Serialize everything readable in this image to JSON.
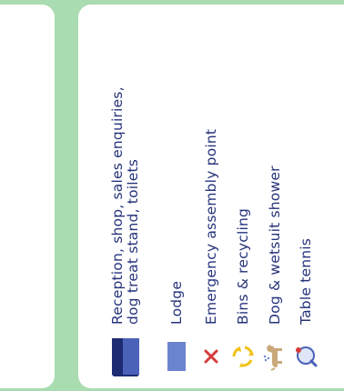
{
  "legend": {
    "items": [
      {
        "icon": "building-icon",
        "label": "Reception, shop, sales enquiries,\ndog treat stand, toilets"
      },
      {
        "icon": "lodge-icon",
        "label": "Lodge"
      },
      {
        "icon": "cross-icon",
        "label": "Emergency assembly point"
      },
      {
        "icon": "recycling-icon",
        "label": "Bins & recycling"
      },
      {
        "icon": "dog-shower-icon",
        "label": "Dog & wetsuit shower"
      },
      {
        "icon": "table-tennis-icon",
        "label": "Table tennis"
      }
    ],
    "colors": {
      "text": "#24327a",
      "building_dark": "#1c2b72",
      "building_light": "#4a62b8",
      "lodge": "#6b84d0",
      "cross": "#d63b3b",
      "recycling": "#f2c21b",
      "dog": "#c9a87a",
      "background": "#a9dcb0"
    }
  }
}
